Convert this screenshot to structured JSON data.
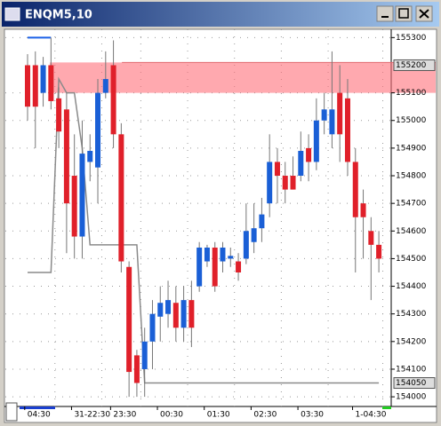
{
  "window_title": "ENQM5,10",
  "chart_data": {
    "type": "candlestick",
    "categories": [
      null,
      "04:30",
      null,
      null,
      null,
      null,
      null,
      "31-22:30",
      null,
      null,
      null,
      null,
      "23:30",
      null,
      null,
      null,
      null,
      null,
      "00:30",
      null,
      null,
      null,
      null,
      null,
      "01:30",
      null,
      null,
      null,
      null,
      null,
      "02:30",
      null,
      null,
      null,
      null,
      null,
      "03:30",
      null,
      null,
      null,
      null,
      null,
      null,
      "1-04:30",
      null,
      null
    ],
    "open": [
      155200,
      155200,
      155100,
      155200,
      155080,
      155040,
      154800,
      154580,
      154850,
      154830,
      155100,
      155200,
      154950,
      154470,
      154150,
      154100,
      154200,
      154290,
      154300,
      154340,
      154250,
      154350,
      154400,
      154490,
      154540,
      154490,
      154500,
      154490,
      154500,
      154560,
      154610,
      154700,
      154850,
      154800,
      154800,
      154800,
      154900,
      154850,
      155000,
      154950,
      155100,
      155080,
      154850,
      154700,
      154600,
      154550
    ],
    "high": [
      155240,
      155250,
      155230,
      155300,
      155120,
      155100,
      154950,
      155000,
      154950,
      155150,
      155250,
      155290,
      154990,
      154490,
      154170,
      154250,
      154350,
      154400,
      154420,
      154400,
      154400,
      154420,
      154560,
      154550,
      154560,
      154560,
      154540,
      154520,
      154700,
      154700,
      154720,
      154950,
      154900,
      154850,
      154870,
      154960,
      154950,
      155080,
      155100,
      155250,
      155200,
      155150,
      154900,
      154750,
      154650,
      154600
    ],
    "low": [
      155000,
      154900,
      155050,
      155040,
      154900,
      154520,
      154500,
      154500,
      154780,
      154700,
      155080,
      154900,
      154450,
      154000,
      154000,
      154000,
      154100,
      154200,
      154250,
      154200,
      154200,
      154180,
      154380,
      154470,
      154380,
      154450,
      154470,
      154420,
      154480,
      154520,
      154560,
      154650,
      154700,
      154700,
      154750,
      154780,
      154780,
      154820,
      154950,
      154900,
      154850,
      154800,
      154450,
      154500,
      154350,
      154450
    ],
    "close": [
      155050,
      155050,
      155200,
      155070,
      154960,
      154700,
      154580,
      154880,
      154890,
      155100,
      155150,
      154950,
      154490,
      154090,
      154050,
      154200,
      154300,
      154340,
      154350,
      154250,
      154350,
      154250,
      154540,
      154540,
      154400,
      154540,
      154510,
      154450,
      154600,
      154610,
      154660,
      154850,
      154800,
      154750,
      154750,
      154890,
      154850,
      155000,
      155040,
      155040,
      154950,
      154850,
      154650,
      154650,
      154550,
      154500
    ],
    "up_color": "#1a5fd6",
    "down_color": "#e0202a",
    "lines": [
      {
        "color": "#1a60e8",
        "values": [
          155300,
          155300,
          155300,
          155300,
          null,
          null,
          null,
          null,
          null,
          null,
          null,
          null,
          null,
          null,
          null,
          null,
          null,
          null,
          null,
          null,
          null,
          null,
          null,
          null,
          null,
          null,
          null,
          null,
          null,
          null,
          null,
          null,
          null,
          null,
          null,
          null,
          null,
          null,
          null,
          null,
          null,
          null,
          null,
          null,
          null,
          null
        ]
      },
      {
        "color": "#8a8a8a",
        "values": [
          154450,
          154450,
          154450,
          154450,
          155150,
          155100,
          155100,
          154900,
          154550,
          154550,
          154550,
          154550,
          154550,
          154550,
          154550,
          154050,
          154050,
          154050,
          154050,
          154050,
          154050,
          154050,
          154050,
          154050,
          154050,
          154050,
          154050,
          154050,
          154050,
          154050,
          154050,
          154050,
          154050,
          154050,
          154050,
          154050,
          154050,
          154050,
          154050,
          154050,
          154050,
          154050,
          154050,
          154050,
          154050,
          154050
        ]
      }
    ],
    "zone": [
      155100,
      155210
    ],
    "zone_color": "#ff6f7a",
    "ylim": [
      153965,
      155330
    ],
    "yticks": [
      155300,
      155100,
      155000,
      154900,
      154800,
      154700,
      154600,
      154500,
      154400,
      154300,
      154200,
      154100,
      154000
    ],
    "price_markers": [
      155200,
      154050
    ],
    "grid": true
  }
}
